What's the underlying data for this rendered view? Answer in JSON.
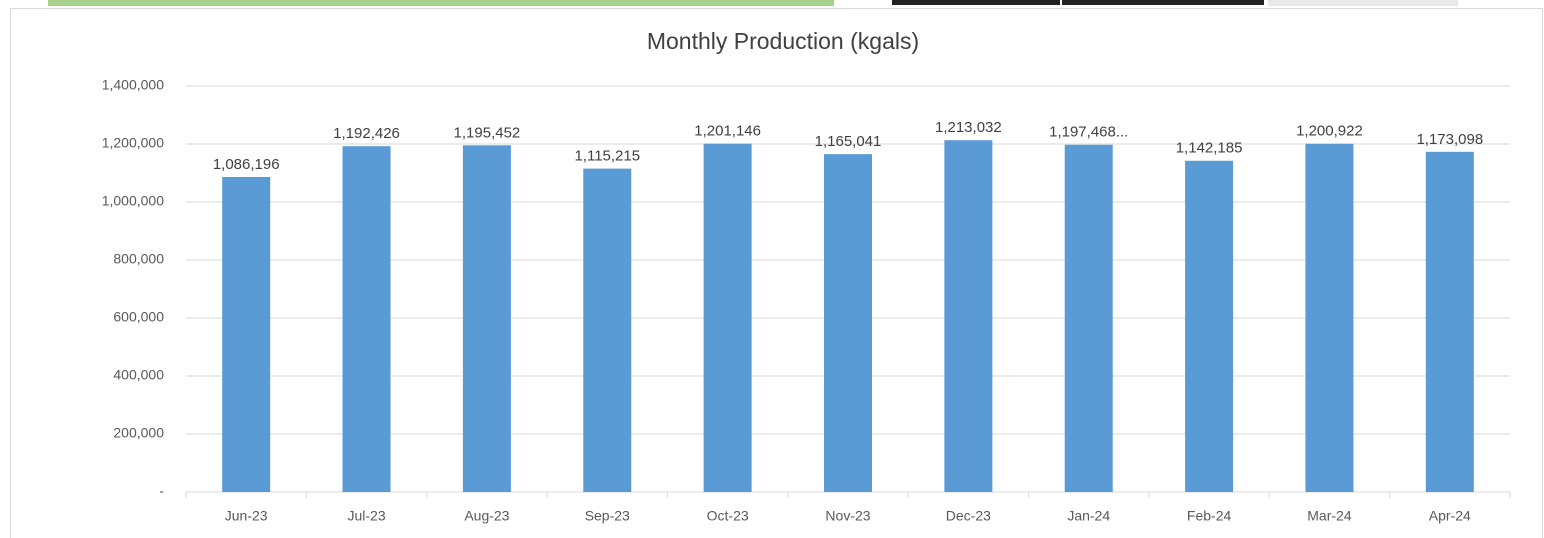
{
  "chart_data": {
    "type": "bar",
    "title": "Monthly Production (kgals)",
    "categories": [
      "Jun-23",
      "Jul-23",
      "Aug-23",
      "Sep-23",
      "Oct-23",
      "Nov-23",
      "Dec-23",
      "Jan-24",
      "Feb-24",
      "Mar-24",
      "Apr-24"
    ],
    "values": [
      1086196,
      1192426,
      1195452,
      1115215,
      1201146,
      1165041,
      1213032,
      1197468,
      1142185,
      1200922,
      1173098
    ],
    "value_labels": [
      "1,086,196",
      "1,192,426",
      "1,195,452",
      "1,115,215",
      "1,201,146",
      "1,165,041",
      "1,213,032",
      "1,197,468...",
      "1,142,185",
      "1,200,922",
      "1,173,098"
    ],
    "color": "#5b9bd5",
    "ylim": [
      0,
      1400000
    ],
    "yticks": [
      {
        "value": 0,
        "label": "-"
      },
      {
        "value": 200000,
        "label": "200,000"
      },
      {
        "value": 400000,
        "label": "400,000"
      },
      {
        "value": 600000,
        "label": "600,000"
      },
      {
        "value": 800000,
        "label": "800,000"
      },
      {
        "value": 1000000,
        "label": "1,000,000"
      },
      {
        "value": 1200000,
        "label": "1,200,000"
      },
      {
        "value": 1400000,
        "label": "1,400,000"
      }
    ],
    "grid": true
  }
}
